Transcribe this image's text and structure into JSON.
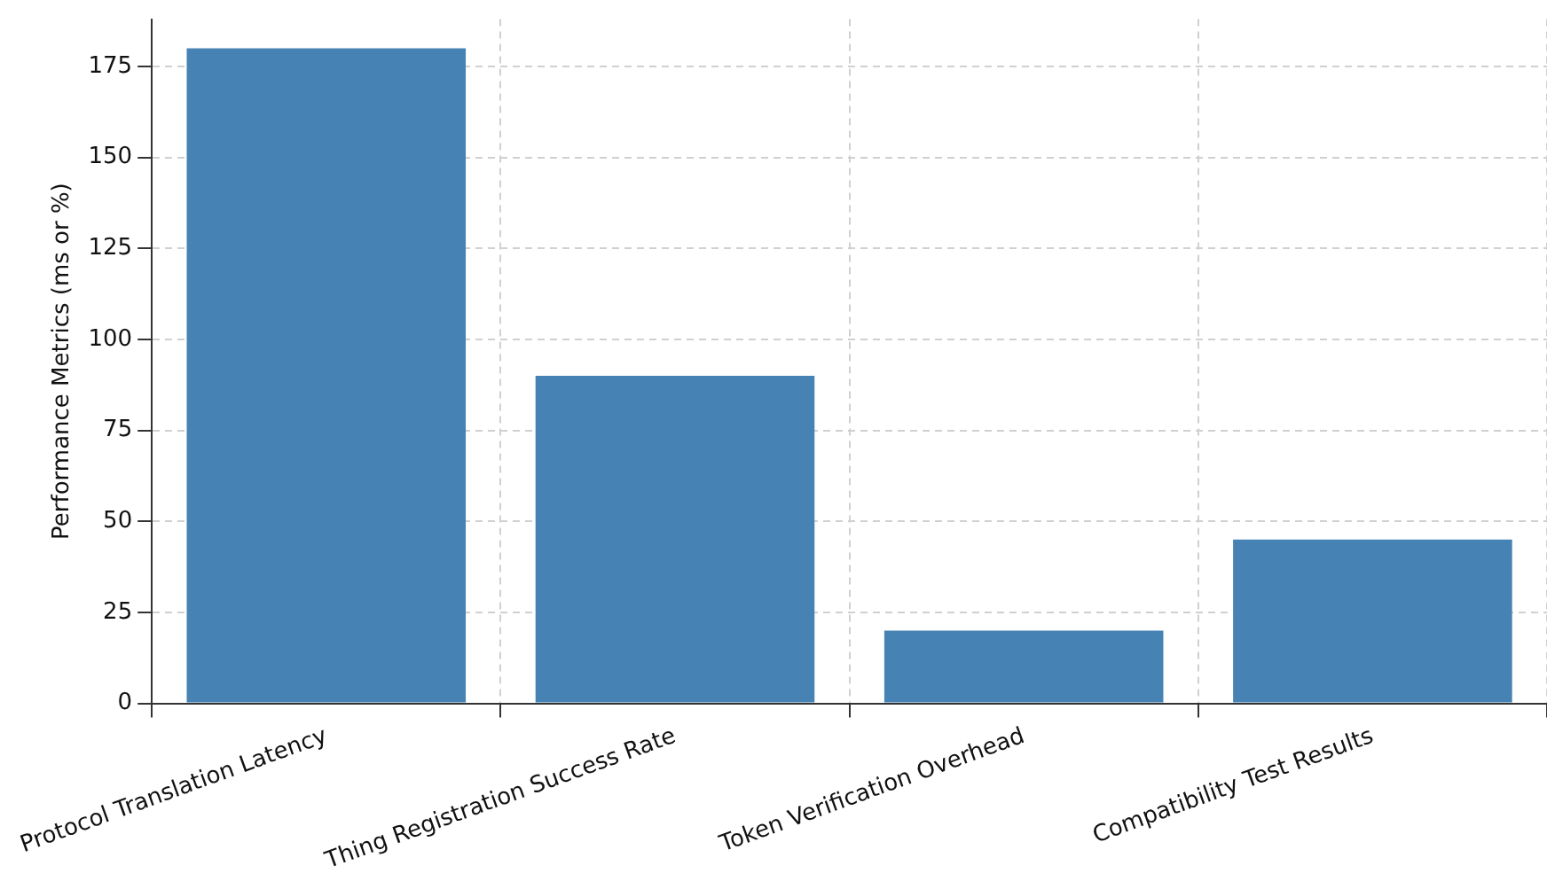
{
  "chart_data": {
    "type": "bar",
    "ylabel": "Performance Metrics (ms or %)",
    "categories": [
      "Protocol Translation Latency",
      "Thing Registration Success Rate",
      "Token Verification Overhead",
      "Compatibility Test Results"
    ],
    "values": [
      180,
      90,
      20,
      45
    ],
    "color": "#4682b4",
    "ylim": [
      0,
      188
    ],
    "yticks": [
      0,
      25,
      50,
      75,
      100,
      125,
      150,
      175
    ],
    "grid": true
  }
}
